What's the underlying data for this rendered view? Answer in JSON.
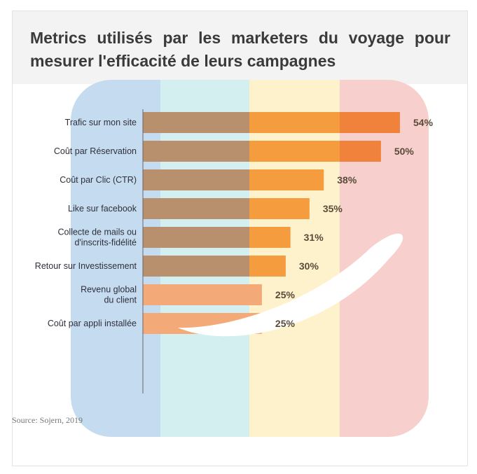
{
  "title": "Metrics utilisés par les marketers du voyage pour mesurer l'efficacité de leurs campagnes",
  "source": "Source: Sojern, 2019",
  "colors": {
    "band_blue": "#c5dcf0",
    "band_teal": "#d4efef",
    "band_yellow": "#fdf2cc",
    "band_red": "#f7cfcc",
    "bar_top": "#f0823c",
    "bar_mid": "#f49c3e",
    "bar_light": "#f4aa78",
    "bar_overlay": "#b8906e"
  },
  "chart_data": {
    "type": "bar",
    "orientation": "horizontal",
    "categories": [
      [
        "Trafic sur mon site"
      ],
      [
        "Coût par Réservation"
      ],
      [
        "Coût par Clic (CTR)"
      ],
      [
        "Like sur facebook"
      ],
      [
        "Collecte de mails ou",
        "d'inscrits-fidélité"
      ],
      [
        "Retour sur Investissement"
      ],
      [
        "Revenu global",
        "du client"
      ],
      [
        "Coût par appli installée"
      ]
    ],
    "values": [
      54,
      50,
      38,
      35,
      31,
      30,
      25,
      25
    ],
    "value_labels": [
      "54%",
      "50%",
      "38%",
      "35%",
      "31%",
      "30%",
      "25%",
      "25%"
    ],
    "unit": "%",
    "xlim": [
      0,
      60
    ],
    "legend": "none",
    "grid": false
  }
}
